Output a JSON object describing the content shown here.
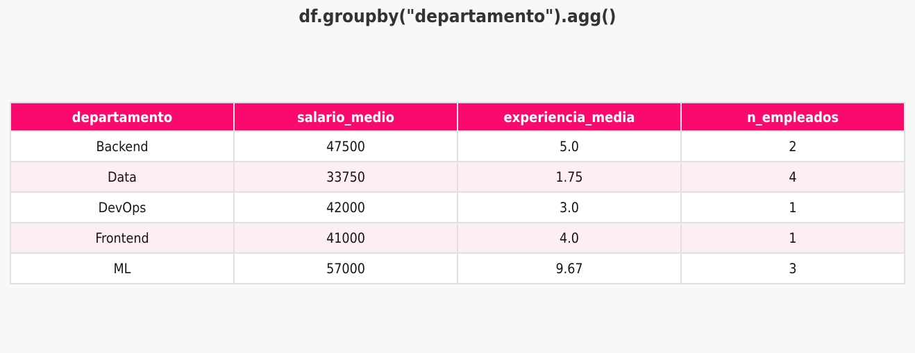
{
  "page": {
    "title": "df.groupby(\"departamento\").agg()"
  },
  "chart_data": {
    "type": "table",
    "title": "df.groupby(\"departamento\").agg()",
    "columns": [
      "departamento",
      "salario_medio",
      "experiencia_media",
      "n_empleados"
    ],
    "rows": [
      [
        "Backend",
        "47500",
        "5.0",
        "2"
      ],
      [
        "Data",
        "33750",
        "1.75",
        "4"
      ],
      [
        "DevOps",
        "42000",
        "3.0",
        "1"
      ],
      [
        "Frontend",
        "41000",
        "4.0",
        "1"
      ],
      [
        "ML",
        "57000",
        "9.67",
        "3"
      ]
    ],
    "layout_hints": {
      "row_striping": "alternate",
      "text_align": "center",
      "header_style": "bold-on-pink",
      "grid": "on"
    }
  },
  "colors": {
    "page_bg": "#F8F8F8",
    "header_bg": "#FA0A6E",
    "header_text": "#FFFFFF",
    "row_bg": "#FFFFFF",
    "row_alt_bg": "#FDEEF3",
    "border": "#E0E0E1",
    "title_text": "#333333",
    "cell_text": "#141414"
  }
}
